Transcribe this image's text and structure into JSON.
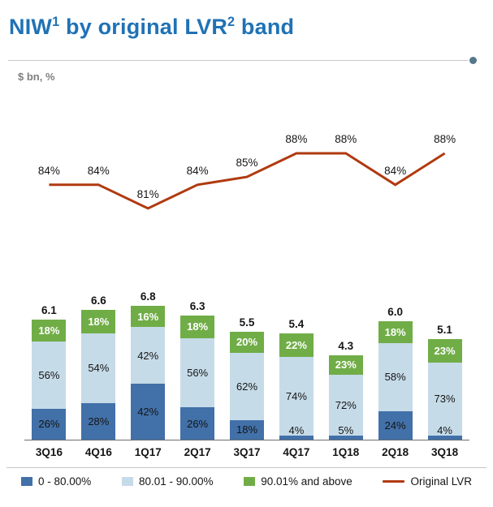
{
  "header": {
    "title": {
      "niw": "NIW",
      "sup1": "1",
      "mid": " by original LVR",
      "sup2": "2",
      "end": " band"
    },
    "subtitle": "$ bn, %"
  },
  "colors": {
    "title_blue": "#1F72B5",
    "dark_blue": "#4270A8",
    "light_blue": "#C6DBE8",
    "green": "#70AD47",
    "dark_red": "#B03A10"
  },
  "chart_data": [
    {
      "type": "line",
      "name": "Original LVR",
      "categories": [
        "3Q16",
        "4Q16",
        "1Q17",
        "2Q17",
        "3Q17",
        "4Q17",
        "1Q18",
        "2Q18",
        "3Q18"
      ],
      "values": [
        84,
        84,
        81,
        84,
        85,
        88,
        88,
        84,
        88
      ],
      "labels": [
        "84%",
        "84%",
        "81%",
        "84%",
        "85%",
        "88%",
        "88%",
        "84%",
        "88%"
      ],
      "color": "#B03A10",
      "ylim": [
        78,
        92
      ],
      "grid": false,
      "unit": "%"
    },
    {
      "type": "bar",
      "stacked": true,
      "categories": [
        "3Q16",
        "4Q16",
        "1Q17",
        "2Q17",
        "3Q17",
        "4Q17",
        "1Q18",
        "2Q18",
        "3Q18"
      ],
      "totals": [
        6.1,
        6.6,
        6.8,
        6.3,
        5.5,
        5.4,
        4.3,
        6.0,
        5.1
      ],
      "total_labels": [
        "6.1",
        "6.6",
        "6.8",
        "6.3",
        "5.5",
        "5.4",
        "4.3",
        "6.0",
        "5.1"
      ],
      "unit_totals": "$ bn",
      "ylim": [
        0,
        7
      ],
      "grid": false,
      "series": [
        {
          "name": "0 - 80.00%",
          "color": "#4270A8",
          "label_color": "#151515",
          "label_bold": false,
          "values_pct": [
            26,
            28,
            42,
            26,
            18,
            4,
            5,
            24,
            4
          ],
          "labels": [
            "26%",
            "28%",
            "42%",
            "26%",
            "18%",
            "4%",
            "5%",
            "24%",
            "4%"
          ]
        },
        {
          "name": "80.01 - 90.00%",
          "color": "#C6DBE8",
          "label_color": "#151515",
          "label_bold": false,
          "values_pct": [
            56,
            54,
            42,
            56,
            62,
            74,
            72,
            58,
            73
          ],
          "labels": [
            "56%",
            "54%",
            "42%",
            "56%",
            "62%",
            "74%",
            "72%",
            "58%",
            "73%"
          ]
        },
        {
          "name": "90.01% and above",
          "color": "#70AD47",
          "label_color": "#ffffff",
          "label_bold": true,
          "values_pct": [
            18,
            18,
            16,
            18,
            20,
            22,
            23,
            18,
            23
          ],
          "labels": [
            "18%",
            "18%",
            "16%",
            "18%",
            "20%",
            "22%",
            "23%",
            "18%",
            "23%"
          ]
        }
      ]
    }
  ],
  "legend": {
    "items": [
      {
        "label": "0 - 80.00%",
        "color": "#4270A8",
        "marker": "rect"
      },
      {
        "label": "80.01 - 90.00%",
        "color": "#C6DBE8",
        "marker": "rect"
      },
      {
        "label": "90.01% and above",
        "color": "#70AD47",
        "marker": "rect"
      },
      {
        "label": "Original LVR",
        "color": "#B03A10",
        "marker": "line"
      }
    ]
  }
}
